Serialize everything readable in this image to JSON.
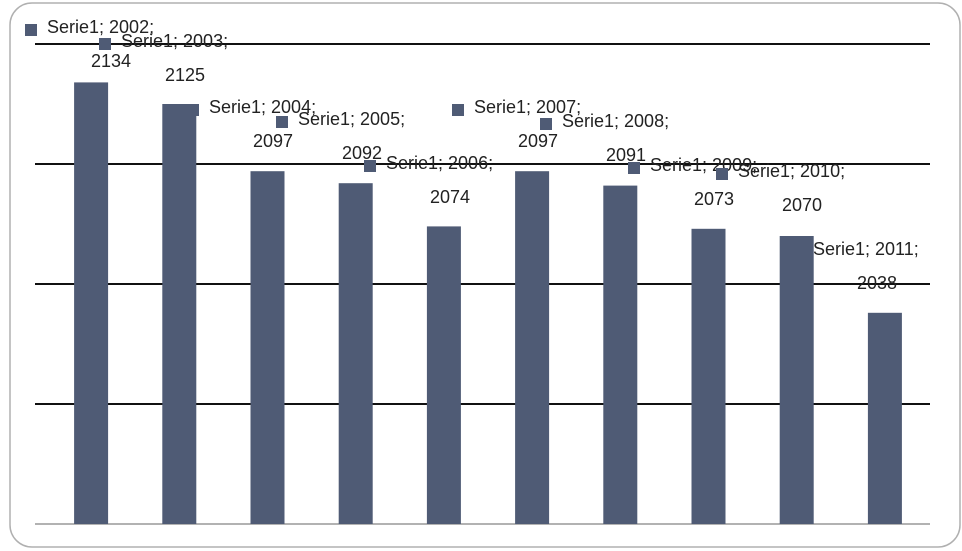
{
  "chart_data": {
    "type": "bar",
    "categories": [
      "2002",
      "2003",
      "2004",
      "2005",
      "2006",
      "2007",
      "2008",
      "2009",
      "2010",
      "2011"
    ],
    "series": [
      {
        "name": "Serie1",
        "color": "#4f5b75",
        "values": [
          2134,
          2125,
          2097,
          2092,
          2074,
          2097,
          2091,
          2073,
          2070,
          2038
        ],
        "value_labels": [
          "Serie1; 2002; 2134",
          "Serie1; 2003; 2125",
          "Serie1; 2004; 2097",
          "Serie1; 2005; 2092",
          "Serie1; 2006; 2074",
          "Serie1; 2007; 2097",
          "Serie1; 2008; 2091",
          "Serie1; 2009; 2073",
          "Serie1; 2010; 2070",
          "Serie1; 2011; 2038"
        ]
      }
    ],
    "ylim": [
      1950,
      2150
    ],
    "yticks": [
      1950,
      2000,
      2050,
      2100,
      2150
    ],
    "grid": true
  }
}
